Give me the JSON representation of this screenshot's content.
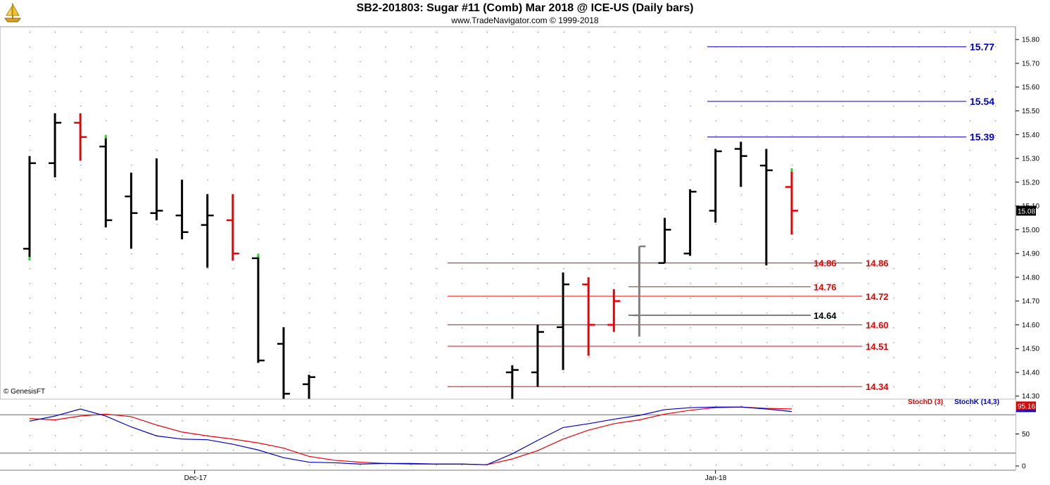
{
  "header": {
    "title": "SB2-201803:  Sugar #11 (Comb) Mar 2018 @ ICE-US  (Daily bars)",
    "subtitle": "www.TradeNavigator.com © 1999-2018"
  },
  "copyright": "© GenesisFT",
  "colors": {
    "up_bar": "#000000",
    "down_bar": "#ee0000",
    "outside_bar": "#808080",
    "level_line": "#dd0000",
    "target_line": "#0000cc",
    "stochD": "#dd0000",
    "stochK": "#0000bb"
  },
  "chart_data": [
    {
      "type": "ohlc",
      "ylim": [
        14.1,
        15.85
      ],
      "y_ticks": [
        "15.80",
        "15.70",
        "15.60",
        "15.50",
        "15.40",
        "15.30",
        "15.20",
        "15.10",
        "15.00",
        "14.90",
        "14.80",
        "14.70",
        "14.60",
        "14.50",
        "14.40",
        "14.30"
      ],
      "last_price": "15.08",
      "x_labels": [
        {
          "label": "Dec-17",
          "bar": 6.5
        },
        {
          "label": "Jan-18",
          "bar": 27
        }
      ],
      "bars": [
        {
          "o": 14.92,
          "h": 15.31,
          "l": 14.88,
          "c": 15.28,
          "color": "black",
          "low_marker": true
        },
        {
          "o": 15.28,
          "h": 15.49,
          "l": 15.22,
          "c": 15.45,
          "color": "black"
        },
        {
          "o": 15.45,
          "h": 15.49,
          "l": 15.29,
          "c": 15.39,
          "color": "red"
        },
        {
          "o": 15.35,
          "h": 15.39,
          "l": 15.01,
          "c": 15.04,
          "color": "black",
          "high_marker": true
        },
        {
          "o": 15.14,
          "h": 15.24,
          "l": 14.92,
          "c": 15.07,
          "color": "black"
        },
        {
          "o": 15.07,
          "h": 15.3,
          "l": 15.04,
          "c": 15.08,
          "color": "black"
        },
        {
          "o": 15.06,
          "h": 15.21,
          "l": 14.96,
          "c": 14.99,
          "color": "black"
        },
        {
          "o": 15.02,
          "h": 15.15,
          "l": 14.84,
          "c": 15.06,
          "color": "black"
        },
        {
          "o": 15.04,
          "h": 15.15,
          "l": 14.87,
          "c": 14.9,
          "color": "red"
        },
        {
          "o": 14.88,
          "h": 14.89,
          "l": 14.44,
          "c": 14.45,
          "color": "black",
          "high_marker": true
        },
        {
          "o": 14.52,
          "h": 14.59,
          "l": 14.2,
          "c": 14.31,
          "color": "black"
        },
        {
          "o": 14.35,
          "h": 14.39,
          "l": 14.2,
          "c": 14.38,
          "color": "black"
        },
        {
          "o": 14.4,
          "h": 14.43,
          "l": 14.2,
          "c": 14.41,
          "color": "black",
          "x": 19
        },
        {
          "o": 14.4,
          "h": 14.6,
          "l": 14.34,
          "c": 14.57,
          "color": "black",
          "x": 20
        },
        {
          "o": 14.59,
          "h": 14.82,
          "l": 14.41,
          "c": 14.77,
          "color": "black",
          "x": 21
        },
        {
          "o": 14.77,
          "h": 14.8,
          "l": 14.47,
          "c": 14.6,
          "color": "red",
          "x": 22
        },
        {
          "o": 14.6,
          "h": 14.75,
          "l": 14.57,
          "c": 14.7,
          "color": "red",
          "x": 23
        },
        {
          "o": 14.64,
          "h": 14.93,
          "l": 14.55,
          "c": 14.93,
          "color": "gray",
          "x": 24
        },
        {
          "o": 14.86,
          "h": 15.05,
          "l": 14.86,
          "c": 15.0,
          "color": "black",
          "x": 25
        },
        {
          "o": 14.9,
          "h": 15.17,
          "l": 14.89,
          "c": 15.16,
          "color": "black",
          "x": 26
        },
        {
          "o": 15.08,
          "h": 15.34,
          "l": 15.03,
          "c": 15.33,
          "color": "black",
          "x": 27
        },
        {
          "o": 15.34,
          "h": 15.37,
          "l": 15.18,
          "c": 15.31,
          "color": "black",
          "x": 28
        },
        {
          "o": 15.27,
          "h": 15.34,
          "l": 14.85,
          "c": 15.25,
          "color": "black",
          "x": 29
        },
        {
          "o": 15.18,
          "h": 15.25,
          "l": 14.98,
          "c": 15.08,
          "color": "red",
          "x": 30,
          "high_marker": true
        }
      ],
      "levels": [
        {
          "value": 15.77,
          "label": "15.77",
          "color": "blue",
          "from": 27,
          "label_at": "right"
        },
        {
          "value": 15.54,
          "label": "15.54",
          "color": "blue",
          "from": 27,
          "label_at": "right"
        },
        {
          "value": 15.39,
          "label": "15.39",
          "color": "blue",
          "from": 27,
          "label_at": "right"
        },
        {
          "value": 14.86,
          "label": "14.86",
          "color": "red",
          "from": 17,
          "label_at": "both"
        },
        {
          "value": 14.76,
          "label": "14.76",
          "color": "red",
          "from": 24,
          "label_at": "mid"
        },
        {
          "value": 14.72,
          "label": "14.72",
          "color": "red",
          "from": 17,
          "label_at": "right"
        },
        {
          "value": 14.64,
          "label": "14.64",
          "color": "black",
          "from": 24,
          "label_at": "mid"
        },
        {
          "value": 14.6,
          "label": "14.60",
          "color": "red",
          "from": 17,
          "label_at": "right"
        },
        {
          "value": 14.51,
          "label": "14.51",
          "color": "red",
          "from": 17,
          "label_at": "right"
        },
        {
          "value": 14.34,
          "label": "14.34",
          "color": "red",
          "from": 17,
          "label_at": "right"
        }
      ]
    },
    {
      "type": "line",
      "ylim": [
        -5,
        105
      ],
      "y_ticks": [
        "50",
        "0"
      ],
      "reference_lines": [
        80,
        20
      ],
      "last_value": "95.16",
      "legend": [
        {
          "name": "StochD (3)",
          "color": "red"
        },
        {
          "name": "StochK (14,3)",
          "color": "blue"
        }
      ],
      "series": [
        {
          "name": "StochD (3)",
          "color": "red",
          "x": [
            0,
            1,
            2,
            3,
            4,
            5,
            6,
            7,
            8,
            9,
            10,
            11,
            12,
            13,
            14,
            15,
            16,
            17,
            18,
            19,
            20,
            21,
            22,
            23,
            24,
            25,
            26,
            27,
            28,
            29,
            30
          ],
          "values": [
            74,
            72,
            78,
            81,
            77,
            64,
            53,
            47,
            42,
            36,
            28,
            15,
            9,
            6,
            4,
            3,
            3,
            3,
            2,
            11,
            24,
            42,
            56,
            66,
            72,
            81,
            87,
            91,
            92,
            90,
            89
          ]
        },
        {
          "name": "StochK (14,3)",
          "color": "blue",
          "x": [
            0,
            1,
            2,
            3,
            4,
            5,
            6,
            7,
            8,
            9,
            10,
            11,
            12,
            13,
            14,
            15,
            16,
            17,
            18,
            19,
            20,
            21,
            22,
            23,
            24,
            25,
            26,
            27,
            28,
            29,
            30
          ],
          "values": [
            70,
            78,
            89,
            78,
            61,
            47,
            42,
            41,
            34,
            25,
            13,
            6,
            5,
            3,
            4,
            4,
            3,
            3,
            2,
            19,
            40,
            60,
            66,
            73,
            79,
            88,
            91,
            92,
            92,
            89,
            85
          ]
        }
      ]
    }
  ]
}
